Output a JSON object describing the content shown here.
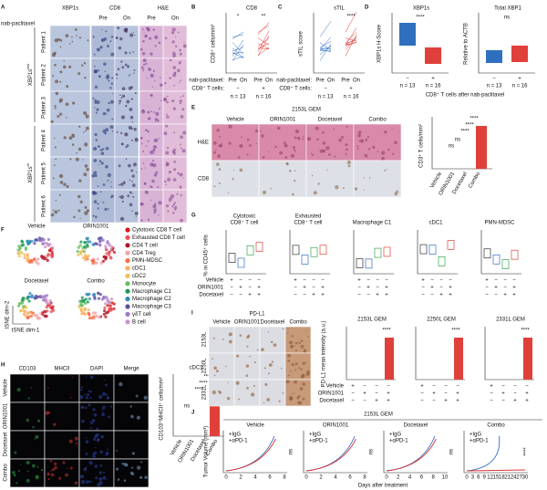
{
  "panels": {
    "A": {
      "label": "A",
      "treatment": "nab-paclitaxel",
      "columns": [
        "XBP1s",
        "CD8",
        "H&E"
      ],
      "timepoints": [
        "Pre",
        "On"
      ],
      "patients": [
        "Patient 1",
        "Patient 2",
        "Patient 3",
        "Patient 4",
        "Patient 5",
        "Patient 6"
      ],
      "groups": [
        {
          "name": "XBP1s",
          "sup": "low"
        },
        {
          "name": "XBP1s",
          "sup": "hi"
        }
      ]
    },
    "B": {
      "label": "B",
      "title": "CD8",
      "ylabel": "CD8⁺ cells/mm²",
      "row1": "nab-paclitaxel:",
      "row2": "CD8⁺ T cells:",
      "timepoints": [
        "Pre",
        "On",
        "Pre",
        "On"
      ],
      "groups": [
        "−",
        "+"
      ],
      "n": [
        "n = 13",
        "n = 16"
      ],
      "sig": [
        "*",
        "**"
      ]
    },
    "C": {
      "label": "C",
      "title": "sTIL",
      "ylabel": "sTIL score",
      "row1": "nab-paclitaxel:",
      "row2": "CD8⁺ T cells:",
      "timepoints": [
        "Pre",
        "On",
        "Pre",
        "On"
      ],
      "groups": [
        "−",
        "+"
      ],
      "n": [
        "n = 13",
        "n = 16"
      ],
      "sig": [
        "****"
      ]
    },
    "D": {
      "label": "D",
      "titles": [
        "XBP1s",
        "Total XBP1"
      ],
      "ylabels": [
        "XBP1s H-Score",
        "Relative to ACTB"
      ],
      "sig": [
        "****",
        "ns"
      ],
      "groups": [
        "−",
        "+"
      ],
      "n": [
        "n = 13",
        "n = 16"
      ],
      "xlabel": "CD8⁺ T cells after nab-paclitaxel"
    },
    "E": {
      "label": "E",
      "title": "2153L GEM",
      "conditions": [
        "Vehicle",
        "ORIN1001",
        "Docetaxel",
        "Combo"
      ],
      "rows": [
        "H&E",
        "CD8"
      ],
      "ylabel": "CD3⁺ T cells/mm²",
      "sig": [
        "****",
        "****",
        "****",
        "ns",
        "ns"
      ]
    },
    "F": {
      "label": "F",
      "conditions": [
        "Vehicle",
        "ORIN1001",
        "Docetaxel",
        "Combo"
      ],
      "xlabel": "tSNE dim-1",
      "ylabel": "tSNE dim-2",
      "legend": [
        {
          "name": "Cytotoxic CD8 T cell",
          "color": "#d7191c"
        },
        {
          "name": "Exhausted CD8 T cell",
          "color": "#e8505b"
        },
        {
          "name": "CD4 T cell",
          "color": "#b2182b"
        },
        {
          "name": "CD4 Treg",
          "color": "#f4a3a8"
        },
        {
          "name": "PMN-MDSC",
          "color": "#f46d43"
        },
        {
          "name": "cDC1",
          "color": "#fdae61"
        },
        {
          "name": "cDC2",
          "color": "#f0c05a"
        },
        {
          "name": "Monocyte",
          "color": "#66bd63"
        },
        {
          "name": "Macrophage C1",
          "color": "#1a9850"
        },
        {
          "name": "Macrophage C2",
          "color": "#3288bd"
        },
        {
          "name": "Macrophage C3",
          "color": "#5e4fa2"
        },
        {
          "name": "γδT cell",
          "color": "#9e77c9"
        },
        {
          "name": "B cell",
          "color": "#c994c7"
        }
      ]
    },
    "G": {
      "label": "G",
      "titles": [
        [
          "Cytotoxic",
          "CD8⁺ T cell"
        ],
        [
          "Exhausted",
          "CD8⁺ T cell"
        ],
        [
          "Macrophage C1"
        ],
        [
          "cDC1"
        ],
        [
          "PMN-MDSC"
        ]
      ],
      "ylabel": "% in CD45⁺ cells",
      "factors": [
        "Vehicle",
        "ORIN1001",
        "Docetaxel"
      ],
      "signs": [
        [
          "+",
          "−",
          "−",
          "−"
        ],
        [
          "−",
          "+",
          "−",
          "+"
        ],
        [
          "−",
          "−",
          "+",
          "+"
        ]
      ]
    },
    "H": {
      "label": "H",
      "channels": [
        "CD103",
        "MHCII",
        "DAPI",
        "Merge"
      ],
      "rows": [
        "Vehicle",
        "ORIN1001",
        "Docetaxel",
        "Combo"
      ],
      "title": "cDC1",
      "ylabel": "CD103⁺MHCII⁺ cells/mm²",
      "categories": [
        "Vehicle",
        "ORIN1001",
        "Docetaxel",
        "Combo"
      ],
      "sig": [
        "****",
        "****",
        "****",
        "ns"
      ]
    },
    "I": {
      "label": "I",
      "title": "PD-L1",
      "conditions": [
        "Vehicle",
        "ORIN1001",
        "Docetaxel",
        "Combo"
      ],
      "rows": [
        "2153L",
        "2250L",
        "2331L"
      ],
      "charts": [
        "2153L GEM",
        "2250L GEM",
        "2331L GEM"
      ],
      "ylabel": "PD-L1 mean intensity (a.u.)",
      "factors": [
        "Vehicle",
        "ORIN1001",
        "Docetaxel"
      ],
      "signs": [
        [
          "+",
          "−",
          "−",
          "−"
        ],
        [
          "−",
          "+",
          "−",
          "+"
        ],
        [
          "−",
          "−",
          "+",
          "+"
        ]
      ],
      "sig": "****"
    },
    "J": {
      "label": "J",
      "title": "2153L GEM",
      "charts": [
        "Vehicle",
        "ORIN1001",
        "Docetaxel",
        "Combo"
      ],
      "legend": [
        "+IgG",
        "+αPD-1"
      ],
      "ylabel": "Tumor Volume (mm³)",
      "xlabel": "Days after treatment",
      "xticks": [
        [
          0,
          2,
          4,
          6,
          8
        ],
        [
          0,
          2,
          4,
          6,
          8
        ],
        [
          0,
          2,
          4,
          6,
          8,
          10
        ],
        [
          0,
          3,
          6,
          9,
          12,
          15,
          18,
          21,
          24,
          27,
          30
        ]
      ],
      "sig": [
        "ns",
        "ns",
        "ns",
        "****"
      ]
    }
  }
}
